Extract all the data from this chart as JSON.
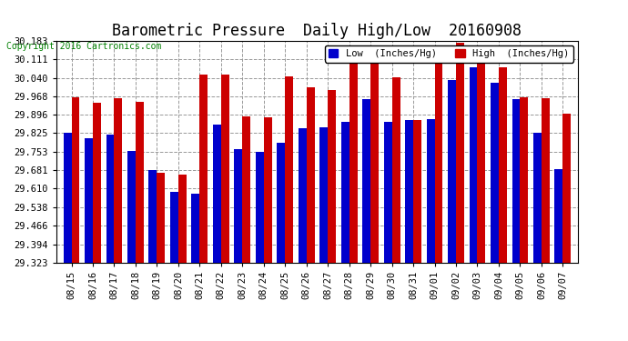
{
  "title": "Barometric Pressure  Daily High/Low  20160908",
  "copyright": "Copyright 2016 Cartronics.com",
  "dates": [
    "08/15",
    "08/16",
    "08/17",
    "08/18",
    "08/19",
    "08/20",
    "08/21",
    "08/22",
    "08/23",
    "08/24",
    "08/25",
    "08/26",
    "08/27",
    "08/28",
    "08/29",
    "08/30",
    "08/31",
    "09/01",
    "09/02",
    "09/03",
    "09/04",
    "09/05",
    "09/06",
    "09/07"
  ],
  "low_values": [
    29.826,
    29.807,
    29.82,
    29.756,
    29.683,
    29.596,
    29.591,
    29.858,
    29.763,
    29.753,
    29.789,
    29.844,
    29.849,
    29.87,
    29.958,
    29.87,
    29.876,
    29.878,
    30.03,
    30.082,
    30.02,
    29.956,
    29.826,
    29.685
  ],
  "high_values": [
    29.963,
    29.943,
    29.96,
    29.948,
    29.67,
    29.664,
    30.052,
    30.052,
    29.89,
    29.886,
    30.046,
    30.002,
    29.993,
    30.126,
    30.097,
    30.042,
    29.875,
    30.158,
    30.175,
    30.116,
    30.08,
    29.965,
    29.962,
    29.9
  ],
  "low_color": "#0000cc",
  "high_color": "#cc0000",
  "bg_color": "#ffffff",
  "plot_bg_color": "#ffffff",
  "grid_color": "#999999",
  "ylim_min": 29.323,
  "ylim_max": 30.183,
  "yticks": [
    29.323,
    29.394,
    29.466,
    29.538,
    29.61,
    29.681,
    29.753,
    29.825,
    29.896,
    29.968,
    30.04,
    30.111,
    30.183
  ],
  "title_fontsize": 12,
  "tick_fontsize": 7.5,
  "legend_fontsize": 7.5,
  "copyright_fontsize": 7
}
